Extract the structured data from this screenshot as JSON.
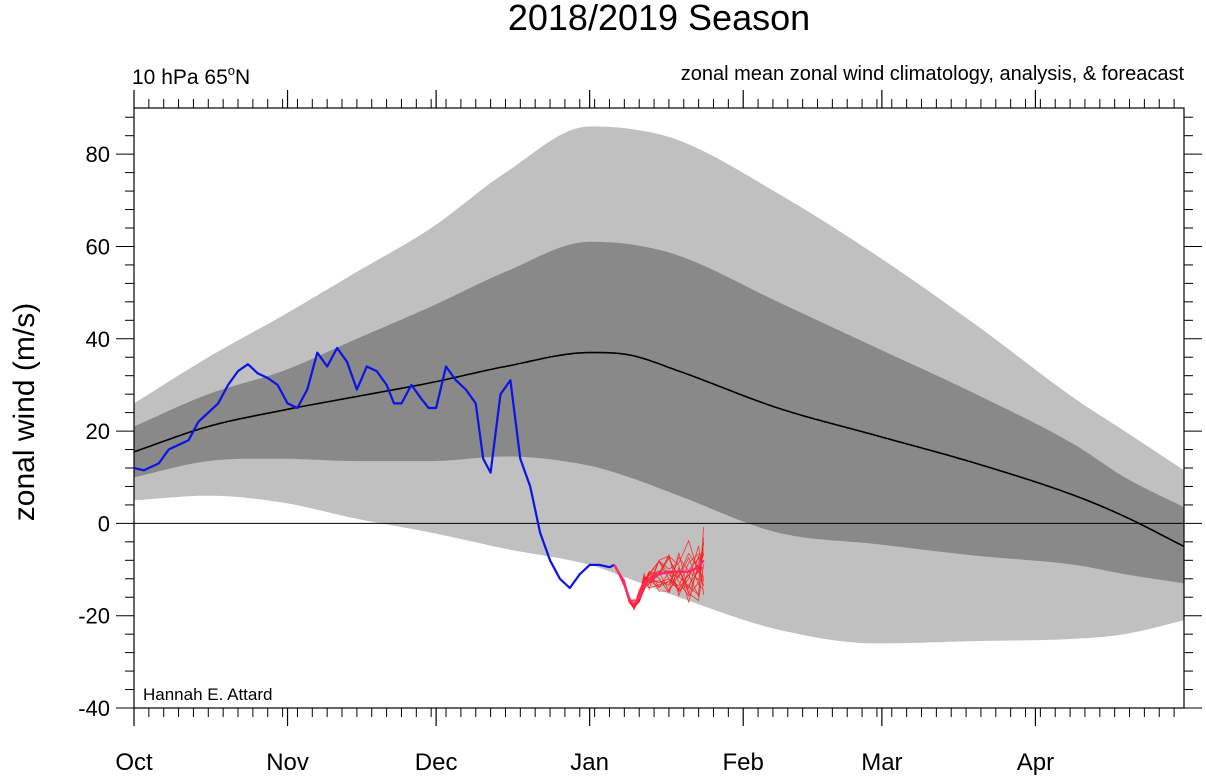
{
  "chart_data": {
    "type": "line",
    "title": "2018/2019 Season",
    "subtitle_left": "10 hPa 65",
    "subtitle_left_sup": "o",
    "subtitle_left_tail": "N",
    "subtitle_right": "zonal mean zonal wind climatology, analysis, & foreacast",
    "ylabel": "zonal wind (m/s)",
    "credit": "Hannah E. Attard",
    "xlim": [
      0,
      212
    ],
    "ylim": [
      -40,
      90
    ],
    "x_unit": "days since Oct 1 2018",
    "y_ticks": [
      -40,
      -20,
      0,
      20,
      40,
      60,
      80
    ],
    "y_tick_labels": [
      "-40",
      "-20",
      "0",
      "20",
      "40",
      "60",
      "80"
    ],
    "month_ticks": [
      {
        "label": "Oct",
        "day": 0
      },
      {
        "label": "Nov",
        "day": 31
      },
      {
        "label": "Dec",
        "day": 61
      },
      {
        "label": "Jan",
        "day": 92
      },
      {
        "label": "Feb",
        "day": 123
      },
      {
        "label": "Mar",
        "day": 151
      },
      {
        "label": "Apr",
        "day": 182
      }
    ],
    "zero_line": true,
    "colors": {
      "outer_band": "#c0c0c0",
      "inner_band": "#898989",
      "climatology": "#000000",
      "analysis": "#0a14e6",
      "forecast": "#ff1a1a",
      "forecast_mean": "#ff2a6a"
    },
    "climatology_x": [
      0,
      15,
      30,
      45,
      60,
      75,
      92,
      100,
      110,
      130,
      150,
      170,
      190,
      200,
      212
    ],
    "climatology_mean": [
      15.5,
      21,
      24.5,
      27.5,
      30.5,
      34,
      37,
      36.5,
      33,
      25,
      19,
      13,
      6,
      1.5,
      -5
    ],
    "outer_band_upper": [
      26,
      36,
      45,
      54.5,
      64,
      76,
      86,
      85.5,
      83,
      71.5,
      58,
      43,
      27,
      20,
      11.5
    ],
    "outer_band_lower": [
      5,
      6,
      4.5,
      1,
      -2,
      -5.5,
      -9,
      -12,
      -16,
      -23,
      -26,
      -25.5,
      -25,
      -24,
      -21
    ],
    "inner_band_upper": [
      21,
      28,
      33,
      40,
      47,
      54.5,
      61,
      60.5,
      58,
      48,
      38,
      28,
      17,
      10,
      3.5
    ],
    "inner_band_lower": [
      10,
      13.5,
      14,
      13.5,
      13.5,
      14.5,
      12.5,
      10,
      6,
      -2,
      -4.5,
      -7,
      -9,
      -11,
      -13
    ],
    "analysis": {
      "name": "analysis",
      "x": [
        0,
        2,
        5,
        7,
        9,
        11,
        13,
        15,
        17,
        19,
        21,
        23,
        25,
        27,
        29,
        31,
        33,
        35,
        37,
        39,
        41,
        43,
        45,
        47,
        49,
        51,
        52.5,
        54,
        56,
        58,
        59.5,
        61,
        63,
        65,
        67,
        69,
        70.5,
        72,
        74,
        76,
        78,
        80,
        82,
        84,
        86,
        88,
        90,
        92,
        94,
        96,
        97
      ],
      "y": [
        12,
        11.5,
        13,
        16,
        17,
        18,
        22,
        24,
        26,
        30,
        33,
        34.5,
        32.5,
        31.5,
        30,
        26,
        25,
        29,
        37,
        34,
        38,
        35,
        29,
        34,
        33,
        30,
        26,
        26,
        30,
        27,
        25,
        25,
        34,
        31,
        29,
        26,
        14,
        11,
        28,
        31,
        14,
        8,
        -2,
        -8,
        -12,
        -14,
        -11,
        -9,
        -9,
        -9.5,
        -9
      ]
    },
    "forecast_mean": {
      "name": "forecast mean",
      "x": [
        97,
        99,
        100,
        101,
        102,
        103,
        104,
        106,
        108,
        110,
        112,
        114,
        115
      ],
      "y": [
        -9,
        -13,
        -16.5,
        -17.5,
        -16,
        -13,
        -12,
        -11,
        -10.5,
        -10.5,
        -10.5,
        -9.5,
        -8
      ]
    }
  }
}
